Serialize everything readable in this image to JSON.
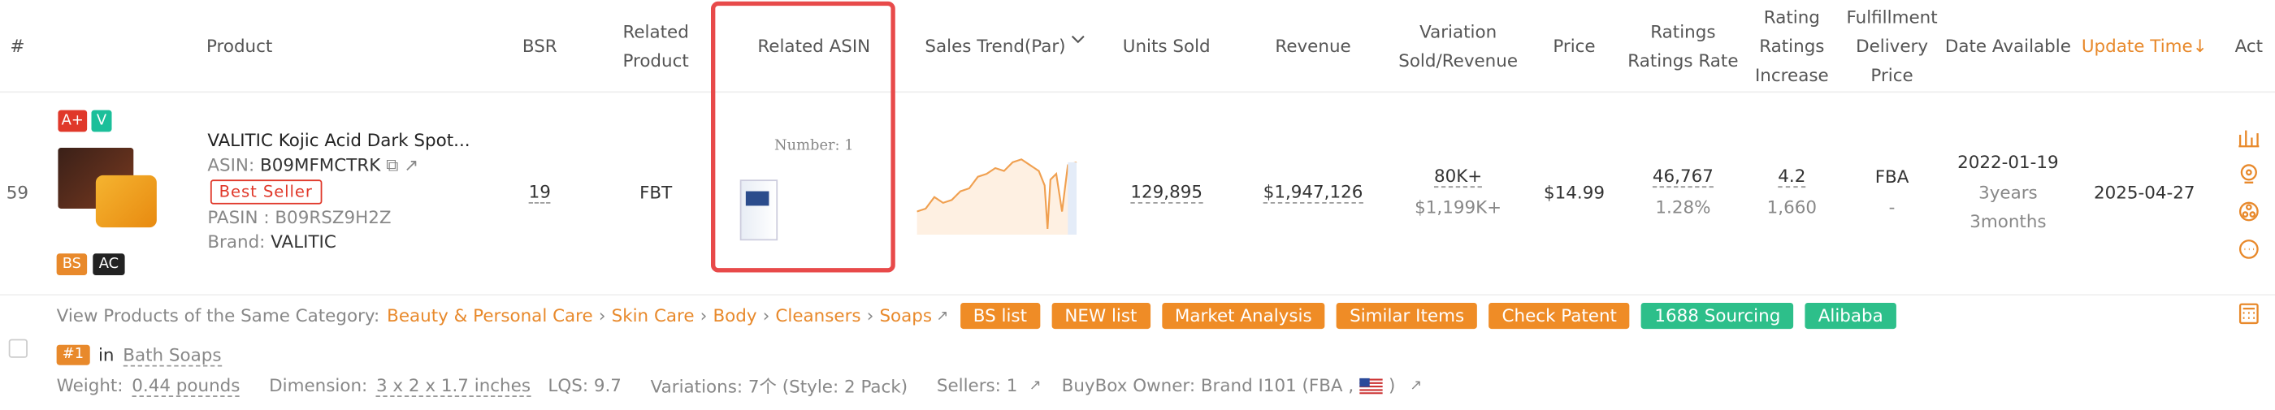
{
  "header": {
    "columns": [
      "#",
      "Product",
      "BSR",
      "Related\nProduct",
      "Related ASIN",
      "Sales Trend(Par)",
      "Units Sold",
      "Revenue",
      "Variation\nSold/Revenue",
      "Price",
      "Ratings\nRatings Rate",
      "Rating\nRatings\nIncrease",
      "Fulfillment\nDelivery\nPrice",
      "Date Available",
      "Update Time↓",
      "Act"
    ]
  },
  "row": {
    "rank": "59",
    "badges_top": [
      "A+",
      "V"
    ],
    "badges_bottom": [
      "BS",
      "AC"
    ],
    "title": "VALITIC Kojic Acid Dark Spot...",
    "asin_label": "ASIN:",
    "asin": "B09MFMCTRK",
    "best_seller": "Best Seller",
    "pasin": "PASIN : B09RSZ9H2Z",
    "brand_label": "Brand:",
    "brand": "VALITIC",
    "bsr": "19",
    "related_product": "FBT",
    "related_asin_number": "Number: 1",
    "units_sold": "129,895",
    "revenue": "$1,947,126",
    "variation_sold": "80K+",
    "variation_revenue": "$1,199K+",
    "price": "$14.99",
    "ratings": "46,767",
    "ratings_rate": "1.28%",
    "rating": "4.2",
    "ratings_increase": "1,660",
    "fulfillment": "FBA",
    "delivery_price": "-",
    "date_available": "2022-01-19",
    "age_years": "3years",
    "age_months": "3months",
    "update_time": "2025-04-27"
  },
  "category": {
    "label": "View Products of the Same Category:",
    "path": [
      "Beauty & Personal Care",
      "Skin Care",
      "Body",
      "Cleansers",
      "Soaps"
    ],
    "separator": "›",
    "buttons": [
      "BS list",
      "NEW list",
      "Market Analysis",
      "Similar Items",
      "Check Patent",
      "1688 Sourcing",
      "Alibaba"
    ]
  },
  "rank_info": {
    "badge": "#1",
    "in": "in",
    "category": "Bath Soaps"
  },
  "details": {
    "weight_label": "Weight:",
    "weight": "0.44 pounds",
    "dimension_label": "Dimension:",
    "dimension": "3 x 2 x 1.7 inches",
    "lqs": "LQS: 9.7",
    "variations": "Variations: 7个 (Style: 2 Pack)",
    "sellers": "Sellers: 1",
    "buybox": "BuyBox Owner: Brand I101 (FBA ,",
    "buybox_end": ")"
  }
}
